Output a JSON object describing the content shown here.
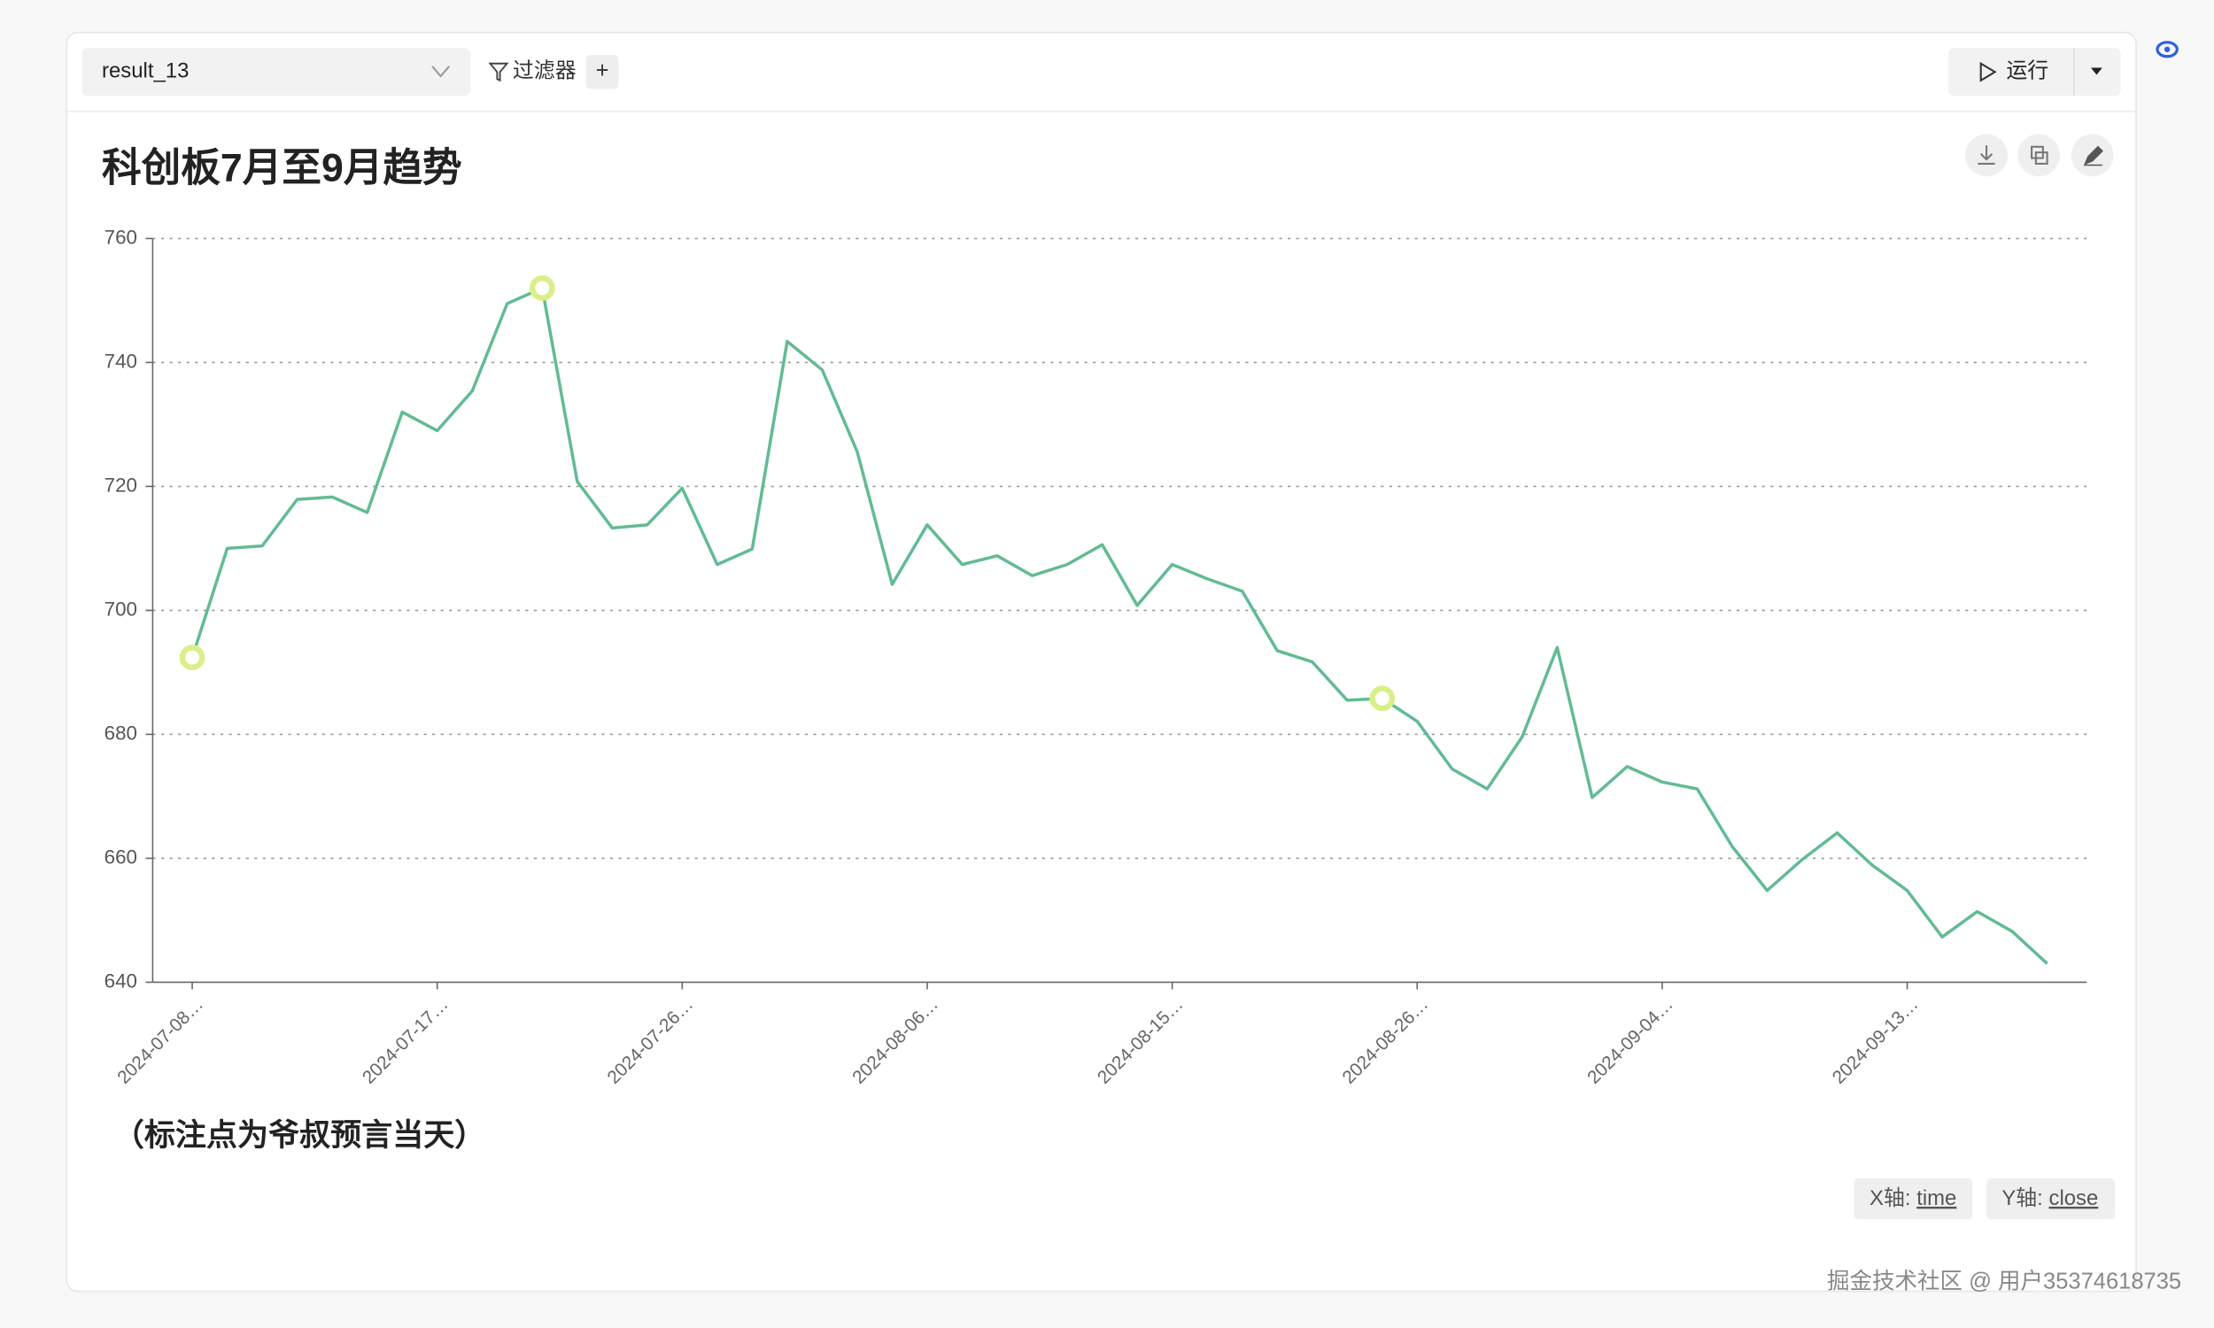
{
  "toolbar": {
    "dataset": "result_13",
    "filter": "过滤器",
    "add": "+",
    "run": "运行"
  },
  "chart_data": {
    "type": "line",
    "title": "科创板7月至9月趋势",
    "annotation": "（标注点为爷叔预言当天）",
    "categories": [
      "2024-07-08…",
      null,
      null,
      null,
      null,
      null,
      null,
      "2024-07-17…",
      null,
      null,
      null,
      null,
      null,
      null,
      "2024-07-26…",
      null,
      null,
      null,
      null,
      null,
      null,
      "2024-08-06…",
      null,
      null,
      null,
      null,
      null,
      null,
      "2024-08-15…",
      null,
      null,
      null,
      null,
      null,
      null,
      "2024-08-26…",
      null,
      null,
      null,
      null,
      null,
      null,
      "2024-09-04…",
      null,
      null,
      null,
      null,
      null,
      null,
      "2024-09-13…",
      null,
      null,
      null,
      null
    ],
    "values": [
      692.4,
      710,
      710.4,
      717.9,
      718.3,
      715.8,
      732,
      729,
      735.4,
      749.5,
      752,
      720.8,
      713.3,
      713.8,
      719.7,
      707.4,
      709.9,
      743.4,
      738.8,
      725.6,
      704.2,
      713.8,
      707.4,
      708.8,
      705.6,
      707.4,
      710.6,
      700.8,
      707.4,
      705.1,
      703.1,
      693.5,
      691.7,
      685.5,
      685.8,
      682.1,
      674.4,
      671.2,
      679.6,
      694,
      669.8,
      674.8,
      672.3,
      671.2,
      661.9,
      654.8,
      659.8,
      664.1,
      658.9,
      654.8,
      647.3,
      651.4,
      648.2,
      643
    ],
    "color": "#62bb93",
    "marker_color": "#d9f089",
    "highlight_points": [
      0,
      10,
      34
    ],
    "ylim": [
      640,
      760
    ],
    "yticks": [
      640,
      660,
      680,
      700,
      720,
      740,
      760
    ],
    "grid": true,
    "x_axis": {
      "prefix": "X轴:",
      "field": "time"
    },
    "y_axis": {
      "prefix": "Y轴:",
      "field": "close"
    }
  },
  "watermark": "掘金技术社区 @ 用户35374618735"
}
